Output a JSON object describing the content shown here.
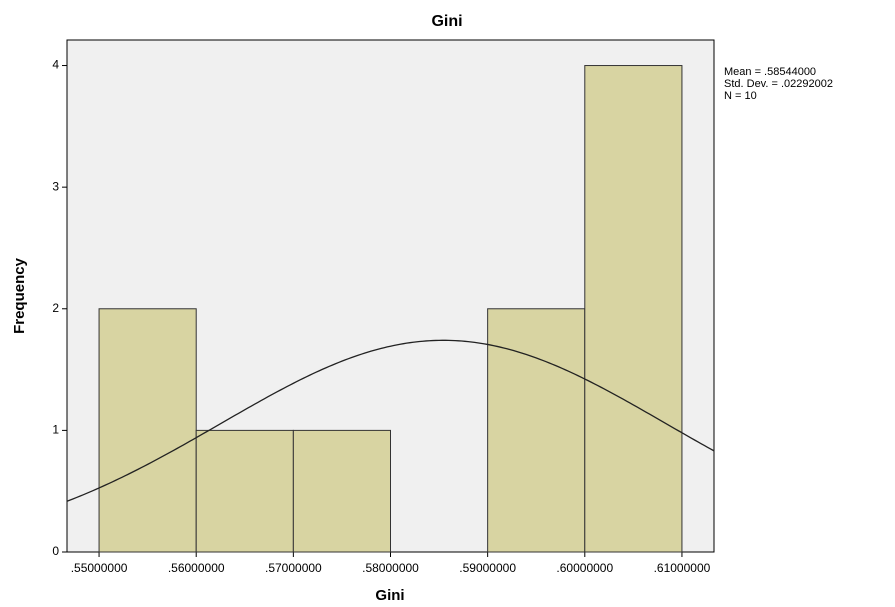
{
  "chart_data": {
    "type": "histogram",
    "title": "Gini",
    "xlabel": "Gini",
    "ylabel": "Frequency",
    "bins": [
      0.55,
      0.56,
      0.57,
      0.58,
      0.59,
      0.6,
      0.61
    ],
    "counts": [
      2,
      1,
      1,
      0,
      2,
      4
    ],
    "color": "#d8d4a2",
    "xlim": [
      0.5467,
      0.6133
    ],
    "ylim": [
      0,
      4.21
    ],
    "xticks": [
      {
        "value": 0.55,
        "label": ".55000000"
      },
      {
        "value": 0.56,
        "label": ".56000000"
      },
      {
        "value": 0.57,
        "label": ".57000000"
      },
      {
        "value": 0.58,
        "label": ".58000000"
      },
      {
        "value": 0.59,
        "label": ".59000000"
      },
      {
        "value": 0.6,
        "label": ".60000000"
      },
      {
        "value": 0.61,
        "label": ".61000000"
      }
    ],
    "yticks": [
      0,
      1,
      2,
      3,
      4
    ],
    "normal_curve": true,
    "stats": {
      "mean": {
        "value": 0.58544,
        "label": "Mean = .58544000"
      },
      "std": {
        "value": 0.02292002,
        "label": "Std. Dev. = .02292002"
      },
      "n": {
        "value": 10,
        "label": "N = 10"
      }
    }
  }
}
